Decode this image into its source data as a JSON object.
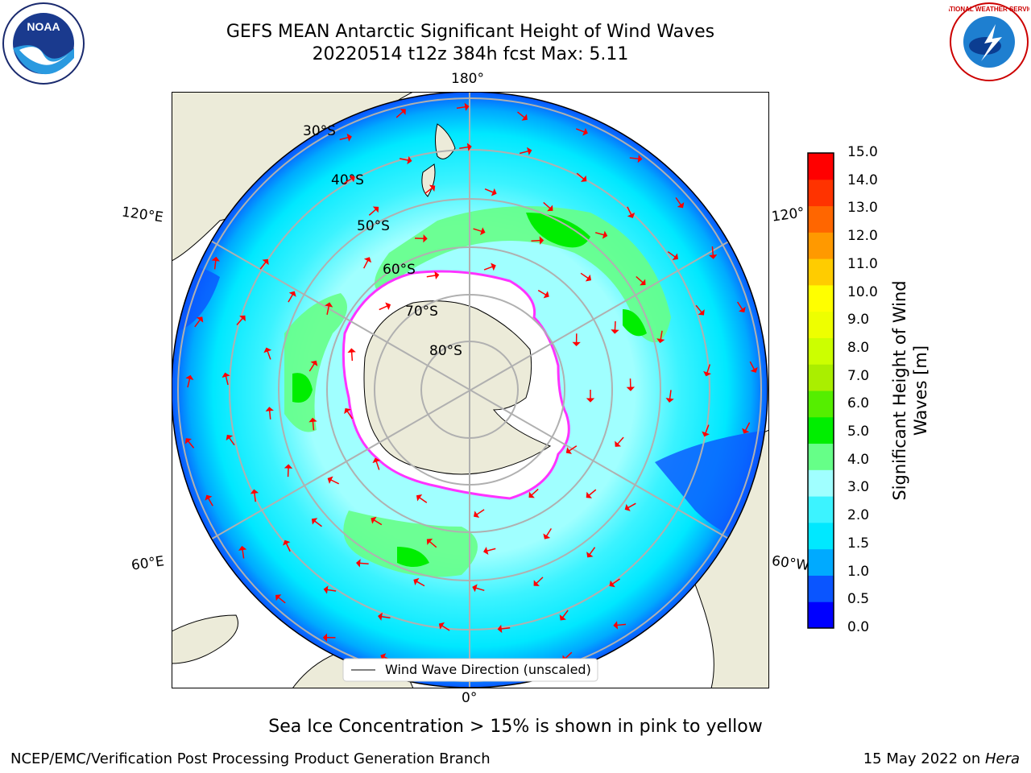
{
  "title_line1": "GEFS MEAN Antarctic Significant Height of Wind Waves",
  "title_line2": "20220514 t12z 384h fcst   Max: 5.11",
  "map": {
    "projection": "south-polar-stereographic",
    "lon_labels": {
      "top": "180°",
      "bottom": "0°",
      "left_upper": "120°E",
      "left_lower": "60°E",
      "right_upper": "120°",
      "right_lower": "60°W"
    },
    "lat_labels": [
      "30°S",
      "40°S",
      "50°S",
      "60°S",
      "70°S",
      "80°S"
    ],
    "legend_label": "Wind Wave Direction (unscaled)",
    "colors": {
      "land": "#ecebd9",
      "ice": "#ffffff",
      "ice_edge": "#ff33ff",
      "arrow": "#ff0000",
      "grid": "#b0b0b0"
    }
  },
  "colorbar": {
    "label": "Significant Height of Wind Waves [m]",
    "ticks": [
      "0.0",
      "0.5",
      "1.0",
      "1.5",
      "2.0",
      "3.0",
      "4.0",
      "5.0",
      "6.0",
      "7.0",
      "8.0",
      "9.0",
      "10.0",
      "11.0",
      "12.0",
      "13.0",
      "14.0",
      "15.0"
    ],
    "colors": [
      "#0000ff",
      "#0a55ff",
      "#00aaff",
      "#00e8ff",
      "#3cf3ff",
      "#a0ffff",
      "#66ff88",
      "#00ee00",
      "#55ee00",
      "#aaee00",
      "#ccff00",
      "#eeff00",
      "#ffff00",
      "#ffcc00",
      "#ff9900",
      "#ff6600",
      "#ff3300",
      "#ff0000"
    ]
  },
  "note": "Sea Ice Concentration > 15% is shown in pink to yellow",
  "footer_left": "NCEP/EMC/Verification Post Processing Product Generation Branch",
  "footer_right_prefix": "15 May 2022 on ",
  "footer_right_machine": "Hera",
  "logos": {
    "left": "NOAA",
    "right": "NATIONAL WEATHER SERVICE"
  }
}
